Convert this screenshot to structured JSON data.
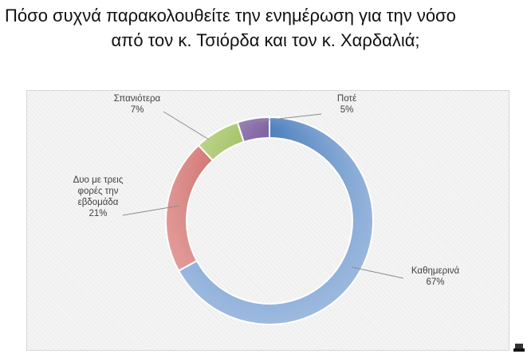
{
  "title": {
    "line1": "Πόσο συχνά παρακολουθείτε την ενημέρωση για την νόσο",
    "line2": "από τον κ. Τσιόρδα και τον κ. Χαρδαλιά;"
  },
  "chart_data": {
    "type": "pie",
    "style": "donut",
    "title": "Πόσο συχνά παρακολουθείτε την ενημέρωση για την νόσο από τον κ. Τσιόρδα και τον κ. Χαρδαλιά;",
    "legend": "none",
    "slices": [
      {
        "label": "Καθημερινά",
        "value": 67,
        "value_label": "67%",
        "color": "#4f81bd",
        "color_light": "#a7c1e4"
      },
      {
        "label": "Δυο με τρεις φορές την εβδομάδα",
        "label_lines": [
          "Δυο με τρεις",
          "φορές την",
          "εβδομάδα"
        ],
        "value": 21,
        "value_label": "21%",
        "color": "#c0504d",
        "color_light": "#e8a9a7"
      },
      {
        "label": "Σπανιότερα",
        "value": 7,
        "value_label": "7%",
        "color": "#9bbb59",
        "color_light": "#cfe2a8"
      },
      {
        "label": "Ποτέ",
        "value": 5,
        "value_label": "5%",
        "color": "#8064a2",
        "color_light": "#bfb0d6"
      }
    ]
  }
}
